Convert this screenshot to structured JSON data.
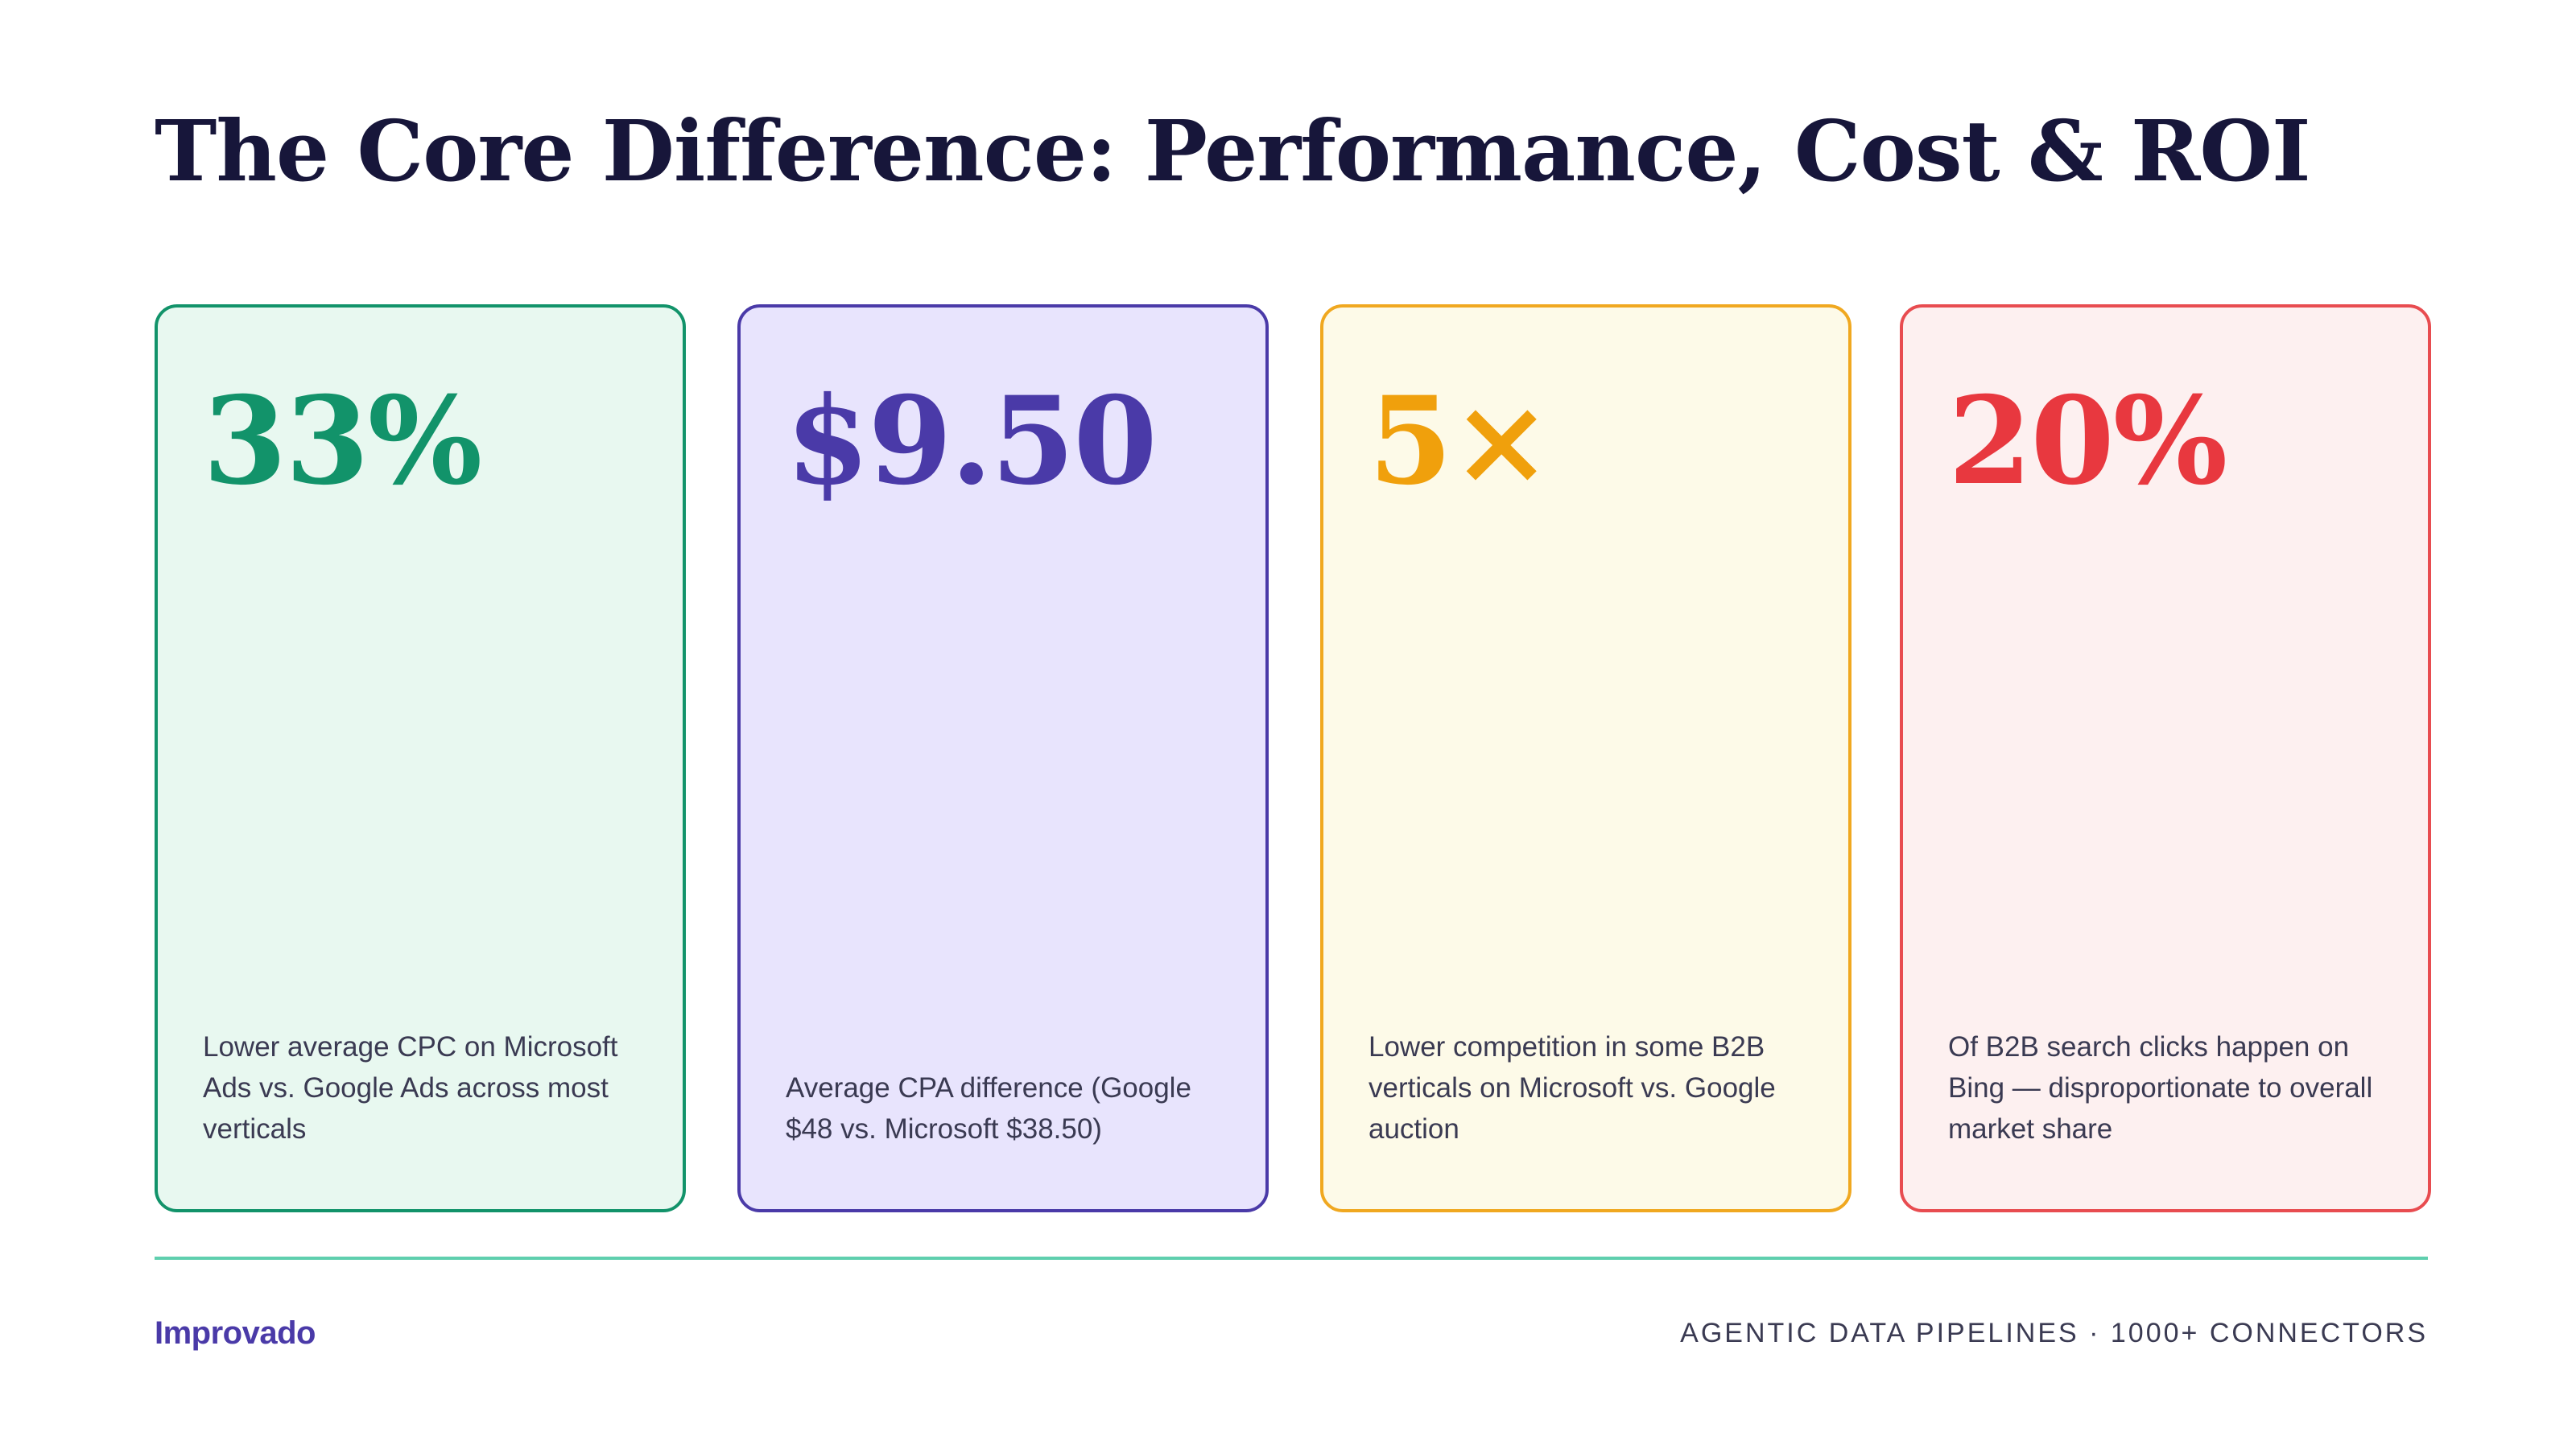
{
  "slide": {
    "title": "The Core Difference: Performance, Cost & ROI"
  },
  "cards": [
    {
      "stat": "33%",
      "description": "Lower average CPC on Microsoft Ads vs. Google Ads across most verticals",
      "accent_color": "#12936a",
      "background_color": "#e8f8f0",
      "border_color": "#12936a"
    },
    {
      "stat": "$9.50",
      "description": "Average CPA difference (Google $48 vs. Microsoft $38.50)",
      "accent_color": "#4a3aa8",
      "background_color": "#e8e4fd",
      "border_color": "#4a3aa8"
    },
    {
      "stat": "5×",
      "description": "Lower competition in some B2B verticals on Microsoft vs. Google auction",
      "accent_color": "#f0a00c",
      "background_color": "#fdfae8",
      "border_color": "#f0a820"
    },
    {
      "stat": "20%",
      "description": "Of B2B search clicks happen on Bing — disproportionate to overall market share",
      "accent_color": "#e8383f",
      "background_color": "#fdf0f0",
      "border_color": "#e84c50"
    }
  ],
  "footer": {
    "brand": "Improvado",
    "brand_color": "#4a3aa8",
    "tagline": "AGENTIC DATA PIPELINES · 1000+ CONNECTORS",
    "divider_color": "#5fcfae"
  }
}
